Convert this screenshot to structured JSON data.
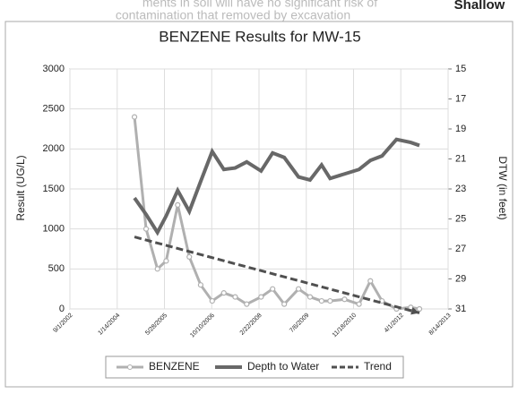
{
  "header_text": [
    "ments in soil will have no significant risk of",
    "contamination that removed by excavation"
  ],
  "header_label": "Shallow",
  "chart_data": {
    "type": "line",
    "title": "BENZENE Results for MW-15",
    "ylabel": "Result (UG/L)",
    "y2label": "DTW (in feet)",
    "x": [
      "7/15/2004",
      "11/15/2004",
      "3/15/2005",
      "6/15/2005",
      "10/15/2005",
      "2/15/2006",
      "6/15/2006",
      "10/15/2006",
      "2/15/2007",
      "6/15/2007",
      "10/15/2007",
      "3/15/2008",
      "7/15/2008",
      "11/15/2008",
      "4/15/2009",
      "8/15/2009",
      "12/15/2009",
      "3/15/2010",
      "8/15/2010",
      "1/15/2011",
      "5/15/2011",
      "9/15/2011",
      "2/15/2012",
      "7/15/2012",
      "10/15/2012"
    ],
    "series": [
      {
        "name": "BENZENE",
        "color": "#b0b0b0",
        "values": [
          2400,
          1000,
          500,
          600,
          1300,
          650,
          300,
          100,
          200,
          150,
          60,
          150,
          250,
          60,
          250,
          150,
          100,
          100,
          120,
          60,
          350,
          100,
          0,
          20,
          0
        ]
      },
      {
        "name": "Depth to Water",
        "color": "#686868",
        "axis": "y2",
        "values": [
          23.6,
          24.7,
          25.9,
          24.8,
          23.1,
          24.5,
          22.5,
          20.5,
          21.7,
          21.6,
          21.2,
          21.8,
          20.6,
          20.9,
          22.2,
          22.4,
          21.4,
          22.3,
          22.0,
          21.7,
          21.1,
          20.8,
          19.7,
          19.9,
          20.1
        ]
      },
      {
        "name": "Trend",
        "color": "#505050",
        "dashed": true,
        "x": [
          "7/15/2004",
          "10/15/2012"
        ],
        "values": [
          900,
          -50
        ]
      }
    ],
    "xlim": [
      "9/1/2002",
      "8/14/2013"
    ],
    "xticks": [
      "9/1/2002",
      "1/14/2004",
      "5/28/2005",
      "10/10/2006",
      "2/22/2008",
      "7/6/2009",
      "11/18/2010",
      "4/1/2012",
      "8/14/2013"
    ],
    "ylim": [
      0,
      3000
    ],
    "yticks": [
      0,
      500,
      1000,
      1500,
      2000,
      2500,
      3000
    ],
    "y2lim": [
      15,
      31
    ],
    "y2_inverted": true,
    "y2ticks": [
      15,
      17,
      19,
      21,
      23,
      25,
      27,
      29,
      31
    ],
    "grid": true,
    "legend": "bottom"
  }
}
